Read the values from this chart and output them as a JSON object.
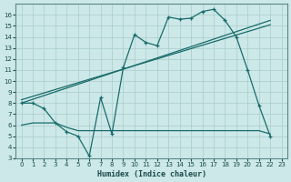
{
  "xlabel": "Humidex (Indice chaleur)",
  "background_color": "#cce8e8",
  "grid_color": "#aacccc",
  "line_color": "#1a6b6b",
  "xlim": [
    -0.5,
    23.5
  ],
  "ylim": [
    3,
    17
  ],
  "yticks": [
    3,
    4,
    5,
    6,
    7,
    8,
    9,
    10,
    11,
    12,
    13,
    14,
    15,
    16
  ],
  "xticks": [
    0,
    1,
    2,
    3,
    4,
    5,
    6,
    7,
    8,
    9,
    10,
    11,
    12,
    13,
    14,
    15,
    16,
    17,
    18,
    19,
    20,
    21,
    22,
    23
  ],
  "line1_x": [
    0,
    1,
    2,
    3,
    4,
    5,
    6,
    7,
    8,
    9,
    10,
    11,
    12,
    13,
    14,
    15,
    16,
    17,
    18,
    19,
    20,
    21,
    22
  ],
  "line1_y": [
    8.0,
    8.0,
    7.5,
    6.2,
    5.4,
    5.0,
    3.2,
    8.5,
    5.2,
    11.2,
    14.2,
    13.5,
    13.2,
    15.8,
    15.6,
    15.7,
    16.3,
    16.5,
    15.5,
    14.0,
    11.0,
    7.8,
    5.0
  ],
  "line2_x": [
    0,
    22
  ],
  "line2_y": [
    8.0,
    15.5
  ],
  "line3_x": [
    0,
    22
  ],
  "line3_y": [
    8.3,
    15.1
  ],
  "line4_x": [
    0,
    1,
    2,
    3,
    4,
    5,
    6,
    7,
    8,
    9,
    10,
    11,
    12,
    13,
    14,
    15,
    16,
    17,
    18,
    19,
    20,
    21,
    22
  ],
  "line4_y": [
    6.0,
    6.2,
    6.2,
    6.2,
    5.8,
    5.5,
    5.5,
    5.5,
    5.5,
    5.5,
    5.5,
    5.5,
    5.5,
    5.5,
    5.5,
    5.5,
    5.5,
    5.5,
    5.5,
    5.5,
    5.5,
    5.5,
    5.2
  ]
}
